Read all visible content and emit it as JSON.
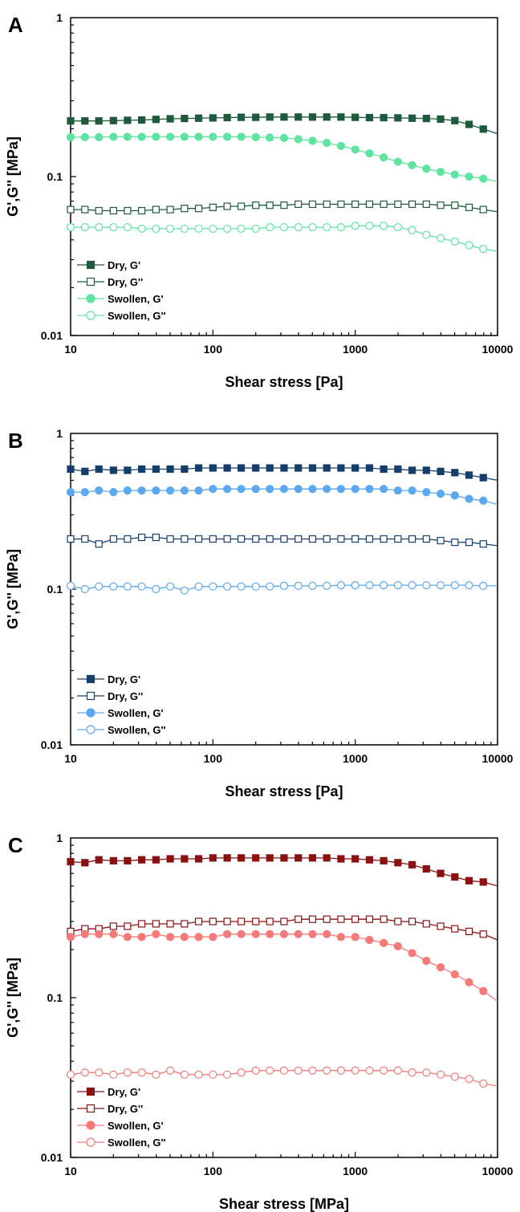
{
  "chart_data": [
    {
      "panel_label": "A",
      "type": "line",
      "xscale": "log",
      "yscale": "log",
      "xlim": [
        10,
        10000
      ],
      "ylim": [
        0.01,
        1
      ],
      "xlabel": "Shear stress [Pa]",
      "ylabel": "G',G'' [MPa]",
      "xticks": [
        "10",
        "100",
        "1000",
        "10000"
      ],
      "yticks": [
        "0.01",
        "0.1",
        "1"
      ],
      "legend_position": "bottom-left",
      "series": [
        {
          "name": "Dry, G'",
          "color": "#1e5a3c",
          "marker": "square",
          "filled": true,
          "x": [
            10,
            12.6,
            15.8,
            20,
            25.1,
            31.6,
            39.8,
            50.1,
            63.1,
            79.4,
            100,
            126,
            158,
            200,
            251,
            316,
            398,
            501,
            631,
            794,
            1000,
            1259,
            1585,
            1995,
            2512,
            3162,
            3981,
            5012,
            6310,
            7943,
            10000
          ],
          "y": [
            0.224,
            0.224,
            0.224,
            0.225,
            0.226,
            0.227,
            0.229,
            0.231,
            0.232,
            0.233,
            0.234,
            0.235,
            0.236,
            0.236,
            0.237,
            0.237,
            0.237,
            0.237,
            0.237,
            0.237,
            0.236,
            0.235,
            0.235,
            0.234,
            0.233,
            0.232,
            0.23,
            0.225,
            0.213,
            0.199,
            0.186
          ]
        },
        {
          "name": "Dry, G''",
          "color": "#1e5a3c",
          "marker": "square",
          "filled": false,
          "x": [
            10,
            12.6,
            15.8,
            20,
            25.1,
            31.6,
            39.8,
            50.1,
            63.1,
            79.4,
            100,
            126,
            158,
            200,
            251,
            316,
            398,
            501,
            631,
            794,
            1000,
            1259,
            1585,
            1995,
            2512,
            3162,
            3981,
            5012,
            6310,
            7943,
            10000
          ],
          "y": [
            0.062,
            0.062,
            0.061,
            0.061,
            0.061,
            0.061,
            0.062,
            0.062,
            0.063,
            0.063,
            0.064,
            0.065,
            0.065,
            0.066,
            0.066,
            0.066,
            0.067,
            0.067,
            0.067,
            0.067,
            0.067,
            0.067,
            0.067,
            0.067,
            0.067,
            0.067,
            0.066,
            0.066,
            0.064,
            0.062,
            0.06
          ]
        },
        {
          "name": "Swollen, G'",
          "color": "#5fe3a1",
          "marker": "circle",
          "filled": true,
          "x": [
            10,
            12.6,
            15.8,
            20,
            25.1,
            31.6,
            39.8,
            50.1,
            63.1,
            79.4,
            100,
            126,
            158,
            200,
            251,
            316,
            398,
            501,
            631,
            794,
            1000,
            1259,
            1585,
            1995,
            2512,
            3162,
            3981,
            5012,
            6310,
            7943,
            10000
          ],
          "y": [
            0.177,
            0.177,
            0.177,
            0.178,
            0.178,
            0.178,
            0.178,
            0.178,
            0.178,
            0.178,
            0.178,
            0.178,
            0.178,
            0.177,
            0.176,
            0.175,
            0.172,
            0.168,
            0.163,
            0.156,
            0.148,
            0.14,
            0.132,
            0.124,
            0.118,
            0.112,
            0.107,
            0.103,
            0.1,
            0.097,
            0.093
          ]
        },
        {
          "name": "Swollen, G''",
          "color": "#5fe3a1",
          "marker": "circle",
          "filled": false,
          "x": [
            10,
            12.6,
            15.8,
            20,
            25.1,
            31.6,
            39.8,
            50.1,
            63.1,
            79.4,
            100,
            126,
            158,
            200,
            251,
            316,
            398,
            501,
            631,
            794,
            1000,
            1259,
            1585,
            1995,
            2512,
            3162,
            3981,
            5012,
            6310,
            7943,
            10000
          ],
          "y": [
            0.048,
            0.048,
            0.048,
            0.048,
            0.048,
            0.047,
            0.047,
            0.047,
            0.047,
            0.047,
            0.047,
            0.047,
            0.047,
            0.047,
            0.048,
            0.048,
            0.048,
            0.048,
            0.048,
            0.048,
            0.049,
            0.049,
            0.049,
            0.048,
            0.046,
            0.043,
            0.041,
            0.039,
            0.037,
            0.035,
            0.034
          ]
        }
      ]
    },
    {
      "panel_label": "B",
      "type": "line",
      "xscale": "log",
      "yscale": "log",
      "xlim": [
        10,
        10000
      ],
      "ylim": [
        0.01,
        1
      ],
      "xlabel": "Shear stress [Pa]",
      "ylabel": "G',G'' [MPa]",
      "xticks": [
        "10",
        "100",
        "1000",
        "10000"
      ],
      "yticks": [
        "0.01",
        "0.1",
        "1"
      ],
      "legend_position": "bottom-left",
      "series": [
        {
          "name": "Dry, G'",
          "color": "#153e6b",
          "marker": "square",
          "filled": true,
          "x": [
            10,
            12.6,
            15.8,
            20,
            25.1,
            31.6,
            39.8,
            50.1,
            63.1,
            79.4,
            100,
            126,
            158,
            200,
            251,
            316,
            398,
            501,
            631,
            794,
            1000,
            1259,
            1585,
            1995,
            2512,
            3162,
            3981,
            5012,
            6310,
            7943,
            10000
          ],
          "y": [
            0.59,
            0.57,
            0.59,
            0.58,
            0.58,
            0.59,
            0.59,
            0.59,
            0.59,
            0.6,
            0.6,
            0.6,
            0.6,
            0.6,
            0.6,
            0.6,
            0.6,
            0.6,
            0.6,
            0.6,
            0.6,
            0.6,
            0.59,
            0.59,
            0.58,
            0.58,
            0.57,
            0.56,
            0.54,
            0.52,
            0.5
          ]
        },
        {
          "name": "Dry, G''",
          "color": "#153e6b",
          "marker": "square",
          "filled": false,
          "x": [
            10,
            12.6,
            15.8,
            20,
            25.1,
            31.6,
            39.8,
            50.1,
            63.1,
            79.4,
            100,
            126,
            158,
            200,
            251,
            316,
            398,
            501,
            631,
            794,
            1000,
            1259,
            1585,
            1995,
            2512,
            3162,
            3981,
            5012,
            6310,
            7943,
            10000
          ],
          "y": [
            0.21,
            0.21,
            0.195,
            0.21,
            0.21,
            0.215,
            0.215,
            0.21,
            0.21,
            0.21,
            0.21,
            0.21,
            0.21,
            0.21,
            0.21,
            0.21,
            0.21,
            0.21,
            0.21,
            0.21,
            0.21,
            0.21,
            0.21,
            0.21,
            0.21,
            0.21,
            0.205,
            0.2,
            0.2,
            0.195,
            0.19
          ]
        },
        {
          "name": "Swollen, G'",
          "color": "#5aa8ee",
          "marker": "circle",
          "filled": true,
          "x": [
            10,
            12.6,
            15.8,
            20,
            25.1,
            31.6,
            39.8,
            50.1,
            63.1,
            79.4,
            100,
            126,
            158,
            200,
            251,
            316,
            398,
            501,
            631,
            794,
            1000,
            1259,
            1585,
            1995,
            2512,
            3162,
            3981,
            5012,
            6310,
            7943,
            10000
          ],
          "y": [
            0.42,
            0.42,
            0.43,
            0.42,
            0.43,
            0.43,
            0.43,
            0.43,
            0.43,
            0.43,
            0.44,
            0.44,
            0.44,
            0.44,
            0.44,
            0.44,
            0.44,
            0.44,
            0.44,
            0.44,
            0.44,
            0.44,
            0.44,
            0.43,
            0.43,
            0.42,
            0.41,
            0.4,
            0.38,
            0.37,
            0.35
          ]
        },
        {
          "name": "Swollen, G''",
          "color": "#5aa8ee",
          "marker": "circle",
          "filled": false,
          "x": [
            10,
            12.6,
            15.8,
            20,
            25.1,
            31.6,
            39.8,
            50.1,
            63.1,
            79.4,
            100,
            126,
            158,
            200,
            251,
            316,
            398,
            501,
            631,
            794,
            1000,
            1259,
            1585,
            1995,
            2512,
            3162,
            3981,
            5012,
            6310,
            7943,
            10000
          ],
          "y": [
            0.105,
            0.1,
            0.104,
            0.104,
            0.104,
            0.104,
            0.1,
            0.104,
            0.098,
            0.104,
            0.104,
            0.104,
            0.104,
            0.104,
            0.104,
            0.105,
            0.105,
            0.105,
            0.105,
            0.106,
            0.106,
            0.106,
            0.106,
            0.106,
            0.106,
            0.106,
            0.106,
            0.106,
            0.106,
            0.105,
            0.105
          ]
        }
      ]
    },
    {
      "panel_label": "C",
      "type": "line",
      "xscale": "log",
      "yscale": "log",
      "xlim": [
        10,
        10000
      ],
      "ylim": [
        0.01,
        1
      ],
      "xlabel": "Shear stress [MPa]",
      "ylabel": "G',G'' [MPa]",
      "xticks": [
        "10",
        "100",
        "1000",
        "10000"
      ],
      "yticks": [
        "0.01",
        "0.1",
        "1"
      ],
      "legend_position": "bottom-left",
      "series": [
        {
          "name": "Dry, G'",
          "color": "#8b1212",
          "marker": "square",
          "filled": true,
          "x": [
            10,
            12.6,
            15.8,
            20,
            25.1,
            31.6,
            39.8,
            50.1,
            63.1,
            79.4,
            100,
            126,
            158,
            200,
            251,
            316,
            398,
            501,
            631,
            794,
            1000,
            1259,
            1585,
            1995,
            2512,
            3162,
            3981,
            5012,
            6310,
            7943,
            10000
          ],
          "y": [
            0.71,
            0.7,
            0.73,
            0.72,
            0.72,
            0.73,
            0.73,
            0.74,
            0.74,
            0.74,
            0.75,
            0.75,
            0.75,
            0.75,
            0.75,
            0.75,
            0.75,
            0.75,
            0.75,
            0.74,
            0.74,
            0.73,
            0.72,
            0.7,
            0.68,
            0.64,
            0.6,
            0.57,
            0.54,
            0.53,
            0.5
          ]
        },
        {
          "name": "Dry, G''",
          "color": "#8b1212",
          "marker": "square",
          "filled": false,
          "x": [
            10,
            12.6,
            15.8,
            20,
            25.1,
            31.6,
            39.8,
            50.1,
            63.1,
            79.4,
            100,
            126,
            158,
            200,
            251,
            316,
            398,
            501,
            631,
            794,
            1000,
            1259,
            1585,
            1995,
            2512,
            3162,
            3981,
            5012,
            6310,
            7943,
            10000
          ],
          "y": [
            0.26,
            0.27,
            0.27,
            0.28,
            0.28,
            0.29,
            0.29,
            0.29,
            0.29,
            0.3,
            0.3,
            0.3,
            0.3,
            0.3,
            0.3,
            0.3,
            0.31,
            0.31,
            0.31,
            0.31,
            0.31,
            0.31,
            0.31,
            0.3,
            0.3,
            0.29,
            0.28,
            0.27,
            0.26,
            0.25,
            0.23
          ]
        },
        {
          "name": "Swollen, G'",
          "color": "#f47a7a",
          "marker": "circle",
          "filled": true,
          "x": [
            10,
            12.6,
            15.8,
            20,
            25.1,
            31.6,
            39.8,
            50.1,
            63.1,
            79.4,
            100,
            126,
            158,
            200,
            251,
            316,
            398,
            501,
            631,
            794,
            1000,
            1259,
            1585,
            1995,
            2512,
            3162,
            3981,
            5012,
            6310,
            7943,
            10000
          ],
          "y": [
            0.24,
            0.25,
            0.25,
            0.25,
            0.24,
            0.24,
            0.25,
            0.24,
            0.24,
            0.24,
            0.24,
            0.25,
            0.25,
            0.25,
            0.25,
            0.25,
            0.25,
            0.25,
            0.25,
            0.24,
            0.24,
            0.23,
            0.22,
            0.21,
            0.19,
            0.17,
            0.155,
            0.14,
            0.125,
            0.11,
            0.095
          ]
        },
        {
          "name": "Swollen, G''",
          "color": "#f47a7a",
          "marker": "circle",
          "filled": false,
          "x": [
            10,
            12.6,
            15.8,
            20,
            25.1,
            31.6,
            39.8,
            50.1,
            63.1,
            79.4,
            100,
            126,
            158,
            200,
            251,
            316,
            398,
            501,
            631,
            794,
            1000,
            1259,
            1585,
            1995,
            2512,
            3162,
            3981,
            5012,
            6310,
            7943,
            10000
          ],
          "y": [
            0.033,
            0.034,
            0.034,
            0.033,
            0.034,
            0.034,
            0.033,
            0.035,
            0.033,
            0.033,
            0.033,
            0.033,
            0.034,
            0.035,
            0.035,
            0.035,
            0.035,
            0.035,
            0.035,
            0.035,
            0.035,
            0.035,
            0.035,
            0.035,
            0.034,
            0.034,
            0.033,
            0.032,
            0.031,
            0.029,
            0.028
          ]
        }
      ]
    }
  ]
}
